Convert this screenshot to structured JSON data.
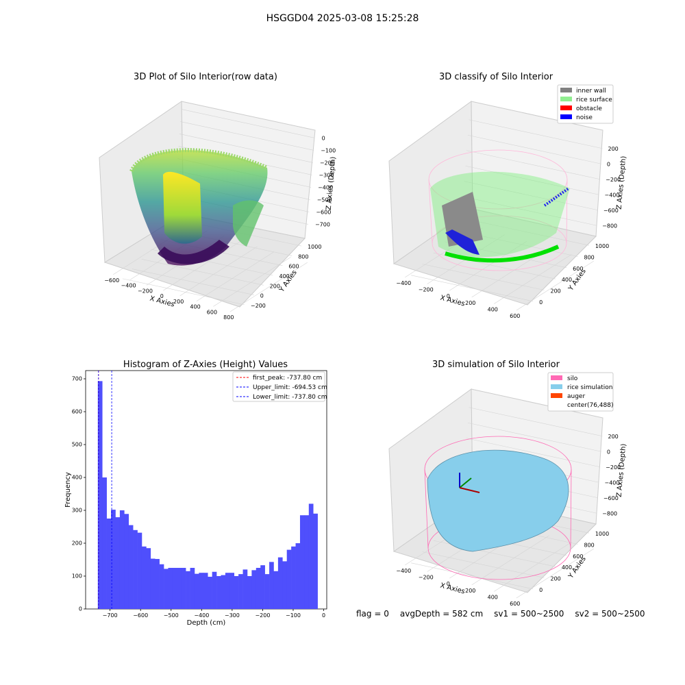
{
  "suptitle": "HSGGD04 2025-03-08 15:25:28",
  "footer": {
    "flag": "flag = 0",
    "avg_depth": "avgDepth = 582 cm",
    "sv1": "sv1 = 500~2500",
    "sv2": "sv2 = 500~2500"
  },
  "colors": {
    "hist_bar": "#4f4ffc",
    "first_peak": "#ff0000",
    "limit_line": "#0000ff",
    "inner_wall": "#808080",
    "rice_surface": "#90ee90",
    "obstacle": "#ff0000",
    "noise": "#0000ff",
    "silo": "#ff69b4",
    "rice_simulation": "#87ceeb",
    "auger": "#ff4500"
  },
  "chart_data": [
    {
      "id": "raw3d",
      "type": "scatter",
      "title": "3D Plot of Silo Interior(row data)",
      "xlabel": "X Axies",
      "ylabel": "Y Axies",
      "zlabel": "Z Axies (Depth)",
      "x_ticks": [
        "-600",
        "-400",
        "-200",
        "0",
        "200",
        "400",
        "600",
        "800"
      ],
      "y_ticks": [
        "-200",
        "0",
        "200",
        "400",
        "600",
        "800",
        "1000"
      ],
      "z_ticks": [
        "0",
        "-100",
        "-200",
        "-300",
        "-400",
        "-500",
        "-600",
        "-700"
      ],
      "colormap": "viridis"
    },
    {
      "id": "classify3d",
      "type": "scatter",
      "title": "3D classify of Silo Interior",
      "xlabel": "X Axies",
      "ylabel": "Y Axies",
      "zlabel": "Z Axies (Depth)",
      "x_ticks": [
        "-400",
        "-200",
        "0",
        "200",
        "400",
        "600"
      ],
      "y_ticks": [
        "0",
        "200",
        "400",
        "600",
        "800",
        "1000"
      ],
      "z_ticks": [
        "200",
        "0",
        "-200",
        "-400",
        "-600",
        "-800"
      ],
      "legend": [
        "inner wall",
        "rice surface",
        "obstacle",
        "noise"
      ],
      "legend_position": "top-right"
    },
    {
      "id": "histogram",
      "type": "bar",
      "title": "Histogram of Z-Axies (Height) Values",
      "xlabel": "Depth (cm)",
      "ylabel": "Frequency",
      "xlim": [
        -780,
        10
      ],
      "ylim": [
        0,
        725
      ],
      "x_ticks": [
        -700,
        -600,
        -500,
        -400,
        -300,
        -200,
        -100,
        0
      ],
      "y_ticks": [
        0,
        100,
        200,
        300,
        400,
        500,
        600,
        700
      ],
      "bin_start": -740,
      "bin_width": 14.4,
      "values": [
        693,
        400,
        275,
        302,
        279,
        300,
        289,
        255,
        240,
        232,
        190,
        185,
        153,
        152,
        136,
        122,
        125,
        125,
        125,
        125,
        115,
        125,
        107,
        110,
        110,
        98,
        113,
        100,
        103,
        110,
        110,
        100,
        106,
        120,
        100,
        118,
        125,
        133,
        106,
        143,
        115,
        157,
        145,
        180,
        190,
        200,
        285,
        285,
        320,
        290
      ],
      "vlines": [
        {
          "label": "first_peak: -737.80 cm",
          "x": -737.8,
          "style": "dashed",
          "color": "#ff0000"
        },
        {
          "label": "Upper_limit: -694.53 cm",
          "x": -694.53,
          "style": "dashed",
          "color": "#0000ff"
        },
        {
          "label": "Lower_limit: -737.80 cm",
          "x": -737.8,
          "style": "dashed",
          "color": "#0000ff"
        }
      ],
      "legend_position": "top-right"
    },
    {
      "id": "sim3d",
      "type": "area",
      "title": "3D simulation of Silo Interior",
      "xlabel": "X Axies",
      "ylabel": "Y Axies",
      "zlabel": "Z Axies (Depth)",
      "x_ticks": [
        "-400",
        "-200",
        "0",
        "200",
        "400",
        "600"
      ],
      "y_ticks": [
        "0",
        "200",
        "400",
        "600",
        "800",
        "1000"
      ],
      "z_ticks": [
        "200",
        "0",
        "-200",
        "-400",
        "-600",
        "-800"
      ],
      "legend": [
        "silo",
        "rice simulation",
        "auger",
        "center(76,488)"
      ],
      "legend_position": "top-right"
    }
  ]
}
